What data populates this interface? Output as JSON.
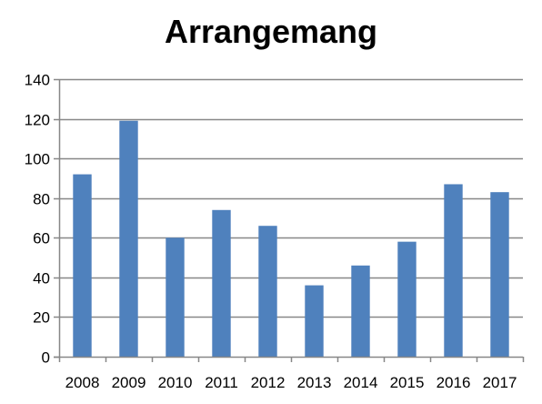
{
  "chart_data": {
    "type": "bar",
    "title": "Arrangemang",
    "xlabel": "",
    "ylabel": "",
    "categories": [
      "2008",
      "2009",
      "2010",
      "2011",
      "2012",
      "2013",
      "2014",
      "2015",
      "2016",
      "2017"
    ],
    "values": [
      92,
      119,
      60,
      74,
      66,
      36,
      46,
      58,
      87,
      83
    ],
    "ylim": [
      0,
      140
    ],
    "yticks": [
      0,
      20,
      40,
      60,
      80,
      100,
      120,
      140
    ],
    "grid": true,
    "legend": "none",
    "colors": {
      "bar": "#4f81bd",
      "grid": "#878787",
      "axis": "#878787"
    }
  }
}
